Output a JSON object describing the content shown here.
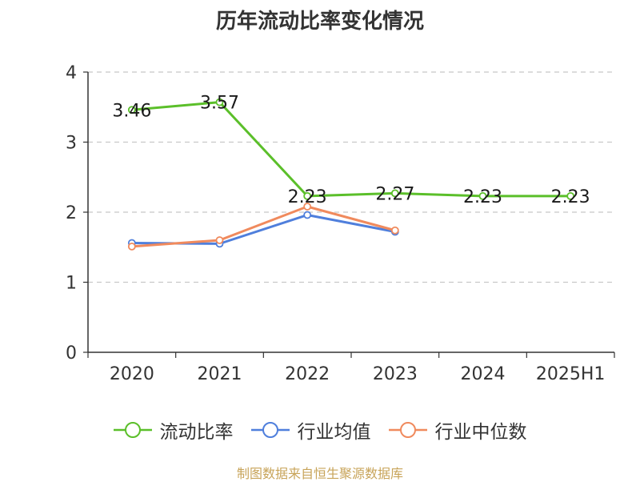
{
  "chart_data": {
    "type": "line",
    "title": "历年流动比率变化情况",
    "categories": [
      "2020",
      "2021",
      "2022",
      "2023",
      "2024",
      "2025H1"
    ],
    "series": [
      {
        "name": "流动比率",
        "color": "#5bbf2a",
        "values": [
          3.46,
          3.57,
          2.23,
          2.27,
          2.23,
          2.23
        ],
        "labels": [
          "3.46",
          "3.57",
          "2.23",
          "2.27",
          "2.23",
          "2.23"
        ]
      },
      {
        "name": "行业均值",
        "color": "#4f7fdc",
        "values": [
          1.56,
          1.55,
          1.96,
          1.72,
          null,
          null
        ]
      },
      {
        "name": "行业中位数",
        "color": "#f08a5d",
        "values": [
          1.51,
          1.6,
          2.08,
          1.74,
          null,
          null
        ]
      }
    ],
    "ylim": [
      0,
      4
    ],
    "yticks": [
      "0",
      "1",
      "2",
      "3",
      "4"
    ],
    "grid": true,
    "legend_position": "bottom"
  },
  "source": "制图数据来自恒生聚源数据库"
}
